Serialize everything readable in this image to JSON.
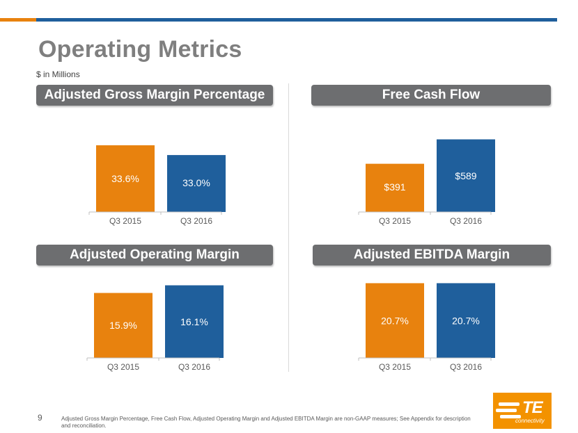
{
  "page": {
    "title": "Operating Metrics",
    "subtitle": "$ in Millions",
    "page_number": "9",
    "footnote": "Adjusted Gross Margin Percentage, Free Cash Flow, Adjusted Operating Margin and Adjusted EBITDA Margin are non-GAAP measures; See Appendix for description and reconciliation.",
    "logo": {
      "mark": "TE",
      "text": "connectivity"
    }
  },
  "colors": {
    "q3_2015": "#e8820e",
    "q3_2016": "#1f5f9c",
    "header_chip": "#6d6e70"
  },
  "chart_data": [
    {
      "type": "bar",
      "title": "Adjusted Gross Margin Percentage",
      "categories": [
        "Q3 2015",
        "Q3 2016"
      ],
      "values": [
        33.6,
        33.0
      ],
      "labels": [
        "33.6%",
        "33.0%"
      ],
      "ylim": [
        29.5,
        34.2
      ]
    },
    {
      "type": "bar",
      "title": "Free Cash Flow",
      "categories": [
        "Q3 2015",
        "Q3 2016"
      ],
      "values": [
        391,
        589
      ],
      "labels": [
        "$391",
        "$589"
      ],
      "ylim": [
        0,
        620
      ]
    },
    {
      "type": "bar",
      "title": "Adjusted Operating Margin",
      "categories": [
        "Q3 2015",
        "Q3 2016"
      ],
      "values": [
        15.9,
        16.1
      ],
      "labels": [
        "15.9%",
        "16.1%"
      ],
      "ylim": [
        14.2,
        16.2
      ]
    },
    {
      "type": "bar",
      "title": "Adjusted EBITDA Margin",
      "categories": [
        "Q3 2015",
        "Q3 2016"
      ],
      "values": [
        20.7,
        20.7
      ],
      "labels": [
        "20.7%",
        "20.7%"
      ],
      "ylim": [
        18.5,
        20.75
      ]
    }
  ]
}
